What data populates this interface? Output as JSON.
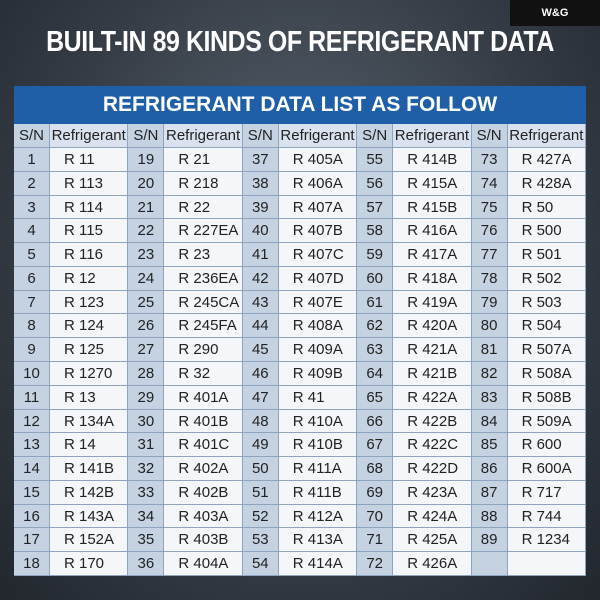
{
  "logo": "W&G",
  "title": "BUILT-IN 89 KINDS OF REFRIGERANT DATA",
  "table": {
    "title": "REFRIGERANT DATA LIST AS FOLLOW",
    "columns": [
      "S/N",
      "Refrigerant",
      "S/N",
      "Refrigerant",
      "S/N",
      "Refrigerant",
      "S/N",
      "Refrigerant",
      "S/N",
      "Refrigerant"
    ],
    "groups": [
      [
        [
          1,
          "R 11"
        ],
        [
          2,
          "R 113"
        ],
        [
          3,
          "R 114"
        ],
        [
          4,
          "R 115"
        ],
        [
          5,
          "R 116"
        ],
        [
          6,
          "R 12"
        ],
        [
          7,
          "R 123"
        ],
        [
          8,
          "R 124"
        ],
        [
          9,
          "R 125"
        ],
        [
          10,
          "R 1270"
        ],
        [
          11,
          "R 13"
        ],
        [
          12,
          "R 134A"
        ],
        [
          13,
          "R 14"
        ],
        [
          14,
          "R 141B"
        ],
        [
          15,
          "R 142B"
        ],
        [
          16,
          "R 143A"
        ],
        [
          17,
          "R 152A"
        ],
        [
          18,
          "R 170"
        ]
      ],
      [
        [
          19,
          "R 21"
        ],
        [
          20,
          "R 218"
        ],
        [
          21,
          "R 22"
        ],
        [
          22,
          "R 227EA"
        ],
        [
          23,
          "R 23"
        ],
        [
          24,
          "R 236EA"
        ],
        [
          25,
          "R 245CA"
        ],
        [
          26,
          "R 245FA"
        ],
        [
          27,
          "R 290"
        ],
        [
          28,
          "R 32"
        ],
        [
          29,
          "R 401A"
        ],
        [
          30,
          "R 401B"
        ],
        [
          31,
          "R 401C"
        ],
        [
          32,
          "R 402A"
        ],
        [
          33,
          "R 402B"
        ],
        [
          34,
          "R 403A"
        ],
        [
          35,
          "R 403B"
        ],
        [
          36,
          "R 404A"
        ]
      ],
      [
        [
          37,
          "R 405A"
        ],
        [
          38,
          "R 406A"
        ],
        [
          39,
          "R 407A"
        ],
        [
          40,
          "R 407B"
        ],
        [
          41,
          "R 407C"
        ],
        [
          42,
          "R 407D"
        ],
        [
          43,
          "R 407E"
        ],
        [
          44,
          "R 408A"
        ],
        [
          45,
          "R 409A"
        ],
        [
          46,
          "R 409B"
        ],
        [
          47,
          "R 41"
        ],
        [
          48,
          "R 410A"
        ],
        [
          49,
          "R 410B"
        ],
        [
          50,
          "R 411A"
        ],
        [
          51,
          "R 411B"
        ],
        [
          52,
          "R 412A"
        ],
        [
          53,
          "R 413A"
        ],
        [
          54,
          "R 414A"
        ]
      ],
      [
        [
          55,
          "R 414B"
        ],
        [
          56,
          "R 415A"
        ],
        [
          57,
          "R 415B"
        ],
        [
          58,
          "R 416A"
        ],
        [
          59,
          "R 417A"
        ],
        [
          60,
          "R 418A"
        ],
        [
          61,
          "R 419A"
        ],
        [
          62,
          "R 420A"
        ],
        [
          63,
          "R 421A"
        ],
        [
          64,
          "R 421B"
        ],
        [
          65,
          "R 422A"
        ],
        [
          66,
          "R 422B"
        ],
        [
          67,
          "R 422C"
        ],
        [
          68,
          "R 422D"
        ],
        [
          69,
          "R 423A"
        ],
        [
          70,
          "R 424A"
        ],
        [
          71,
          "R 425A"
        ],
        [
          72,
          "R 426A"
        ]
      ],
      [
        [
          73,
          "R 427A"
        ],
        [
          74,
          "R 428A"
        ],
        [
          75,
          "R 50"
        ],
        [
          76,
          "R 500"
        ],
        [
          77,
          "R 501"
        ],
        [
          78,
          "R 502"
        ],
        [
          79,
          "R 503"
        ],
        [
          80,
          "R 504"
        ],
        [
          81,
          "R 507A"
        ],
        [
          82,
          "R 508A"
        ],
        [
          83,
          "R 508B"
        ],
        [
          84,
          "R 509A"
        ],
        [
          85,
          "R 600"
        ],
        [
          86,
          "R 600A"
        ],
        [
          87,
          "R 717"
        ],
        [
          88,
          "R 744"
        ],
        [
          89,
          "R 1234"
        ]
      ]
    ]
  }
}
